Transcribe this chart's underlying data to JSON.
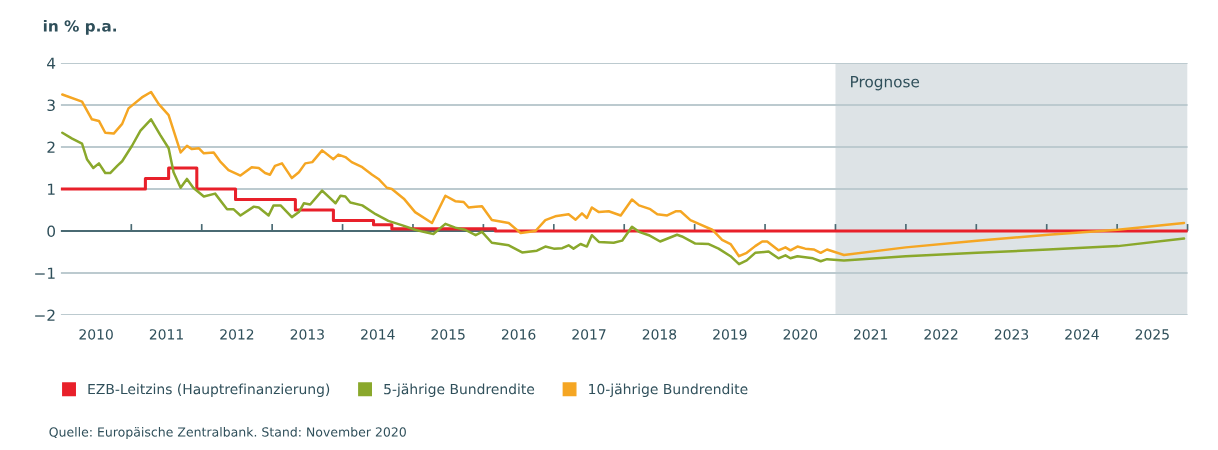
{
  "chart_data": {
    "type": "line",
    "ylabel": "in % p.a.",
    "xlim": [
      2010,
      2026
    ],
    "ylim": [
      -2,
      4
    ],
    "yticks": [
      {
        "value": -2,
        "label": "−2"
      },
      {
        "value": -1,
        "label": "−1"
      },
      0,
      1,
      2,
      3,
      4
    ],
    "xticks": [
      {
        "value": 2010.5,
        "label": "2010"
      },
      {
        "value": 2011.5,
        "label": "2011"
      },
      {
        "value": 2012.5,
        "label": "2012"
      },
      {
        "value": 2013.5,
        "label": "2013"
      },
      {
        "value": 2014.5,
        "label": "2014"
      },
      {
        "value": 2015.5,
        "label": "2015"
      },
      {
        "value": 2016.5,
        "label": "2016"
      },
      {
        "value": 2017.5,
        "label": "2017"
      },
      {
        "value": 2018.5,
        "label": "2018"
      },
      {
        "value": 2019.5,
        "label": "2019"
      },
      {
        "value": 2020.5,
        "label": "2020"
      },
      {
        "value": 2021.5,
        "label": "2021"
      },
      {
        "value": 2022.5,
        "label": "2022"
      },
      {
        "value": 2023.5,
        "label": "2023"
      },
      {
        "value": 2024.5,
        "label": "2024"
      },
      {
        "value": 2025.5,
        "label": "2025"
      },
      {
        "value": 2011,
        "label": null
      },
      {
        "value": 2012,
        "label": null
      },
      {
        "value": 2013,
        "label": null
      },
      {
        "value": 2014,
        "label": null
      },
      {
        "value": 2015,
        "label": null
      },
      {
        "value": 2016,
        "label": null
      },
      {
        "value": 2017,
        "label": null
      },
      {
        "value": 2018,
        "label": null
      },
      {
        "value": 2019,
        "label": null
      },
      {
        "value": 2020,
        "label": null
      },
      {
        "value": 2021,
        "label": null
      },
      {
        "value": 2022,
        "label": null
      },
      {
        "value": 2023,
        "label": null
      },
      {
        "value": 2024,
        "label": null
      },
      {
        "value": 2025,
        "label": null
      },
      {
        "value": 2026,
        "label": null
      }
    ],
    "grid": "y",
    "legend": "bottom",
    "ref_lines": [
      {
        "axis": "y",
        "value": 0,
        "color": "#4a6a73"
      }
    ],
    "bands": [
      {
        "axis": "x",
        "from": 2021.0,
        "to": 2026,
        "label": "Prognose",
        "color": "#dde3e6"
      }
    ],
    "annotations": [
      "Quelle: Europäische Zentralbank. Stand: November 2020"
    ],
    "series": [
      {
        "name": "EZB-Leitzins (Hauptrefinanzierung)",
        "type": "step",
        "color": "#e8202a",
        "x": [
          2010.0,
          2011.2,
          2011.53,
          2011.93,
          2012.48,
          2013.33,
          2013.87,
          2014.44,
          2014.7,
          2016.17,
          2026.0
        ],
        "values": [
          1.0,
          1.25,
          1.5,
          1.0,
          0.75,
          0.5,
          0.25,
          0.15,
          0.05,
          0.0,
          0.0
        ]
      },
      {
        "name": "5-jährige Bundrendite",
        "color": "#8aa82c",
        "x": [
          2010.02,
          2010.16,
          2010.3,
          2010.37,
          2010.46,
          2010.54,
          2010.63,
          2010.7,
          2010.8,
          2010.87,
          2011.01,
          2011.13,
          2011.28,
          2011.41,
          2011.53,
          2011.6,
          2011.7,
          2011.79,
          2011.88,
          2012.03,
          2012.19,
          2012.36,
          2012.45,
          2012.55,
          2012.74,
          2012.81,
          2012.95,
          2013.02,
          2013.12,
          2013.28,
          2013.38,
          2013.45,
          2013.54,
          2013.71,
          2013.9,
          2013.97,
          2014.04,
          2014.11,
          2014.28,
          2014.47,
          2014.65,
          2014.84,
          2015.03,
          2015.15,
          2015.29,
          2015.46,
          2015.6,
          2015.74,
          2015.89,
          2015.98,
          2016.12,
          2016.36,
          2016.55,
          2016.76,
          2016.88,
          2017.0,
          2017.12,
          2017.21,
          2017.28,
          2017.38,
          2017.47,
          2017.54,
          2017.64,
          2017.85,
          2017.97,
          2018.11,
          2018.21,
          2018.35,
          2018.51,
          2018.75,
          2018.82,
          2019.01,
          2019.2,
          2019.34,
          2019.51,
          2019.63,
          2019.74,
          2019.86,
          2020.05,
          2020.19,
          2020.29,
          2020.36,
          2020.46,
          2020.68,
          2020.79,
          2020.88,
          2021.12,
          2022.0,
          2023.01,
          2024.02,
          2025.01,
          2025.95
        ],
        "values": [
          2.34,
          2.2,
          2.08,
          1.71,
          1.5,
          1.61,
          1.38,
          1.38,
          1.55,
          1.66,
          2.03,
          2.39,
          2.66,
          2.29,
          1.97,
          1.4,
          1.03,
          1.24,
          1.03,
          0.82,
          0.89,
          0.52,
          0.52,
          0.37,
          0.58,
          0.56,
          0.37,
          0.61,
          0.61,
          0.33,
          0.45,
          0.66,
          0.63,
          0.96,
          0.66,
          0.84,
          0.82,
          0.68,
          0.61,
          0.4,
          0.24,
          0.14,
          0.03,
          -0.02,
          -0.07,
          0.17,
          0.08,
          0.03,
          -0.1,
          -0.02,
          -0.28,
          -0.34,
          -0.51,
          -0.47,
          -0.37,
          -0.42,
          -0.41,
          -0.34,
          -0.42,
          -0.31,
          -0.37,
          -0.1,
          -0.26,
          -0.28,
          -0.23,
          0.1,
          -0.02,
          -0.1,
          -0.25,
          -0.09,
          -0.13,
          -0.3,
          -0.31,
          -0.42,
          -0.6,
          -0.79,
          -0.7,
          -0.52,
          -0.49,
          -0.65,
          -0.58,
          -0.65,
          -0.6,
          -0.65,
          -0.72,
          -0.67,
          -0.7,
          -0.6,
          -0.52,
          -0.44,
          -0.36,
          -0.18
        ]
      },
      {
        "name": "10-jährige Bundrendite",
        "color": "#f5a623",
        "x": [
          2010.02,
          2010.3,
          2010.44,
          2010.54,
          2010.63,
          2010.75,
          2010.87,
          2010.96,
          2011.15,
          2011.28,
          2011.39,
          2011.53,
          2011.7,
          2011.79,
          2011.86,
          2011.96,
          2012.03,
          2012.17,
          2012.26,
          2012.38,
          2012.55,
          2012.71,
          2012.81,
          2012.9,
          2012.97,
          2013.04,
          2013.14,
          2013.28,
          2013.38,
          2013.47,
          2013.57,
          2013.71,
          2013.87,
          2013.94,
          2014.04,
          2014.13,
          2014.28,
          2014.42,
          2014.51,
          2014.63,
          2014.7,
          2014.87,
          2015.03,
          2015.27,
          2015.46,
          2015.6,
          2015.72,
          2015.79,
          2015.89,
          2015.98,
          2016.12,
          2016.36,
          2016.53,
          2016.74,
          2016.88,
          2017.02,
          2017.21,
          2017.31,
          2017.4,
          2017.47,
          2017.54,
          2017.64,
          2017.78,
          2017.95,
          2018.11,
          2018.21,
          2018.37,
          2018.47,
          2018.61,
          2018.73,
          2018.8,
          2018.94,
          2019.06,
          2019.25,
          2019.39,
          2019.51,
          2019.63,
          2019.74,
          2019.86,
          2019.96,
          2020.03,
          2020.19,
          2020.29,
          2020.36,
          2020.46,
          2020.57,
          2020.69,
          2020.79,
          2020.88,
          2021.12,
          2022.0,
          2023.01,
          2024.02,
          2025.01,
          2025.95
        ],
        "values": [
          3.25,
          3.08,
          2.66,
          2.62,
          2.34,
          2.32,
          2.55,
          2.92,
          3.18,
          3.31,
          3.02,
          2.76,
          1.87,
          2.03,
          1.95,
          1.97,
          1.85,
          1.87,
          1.66,
          1.45,
          1.32,
          1.52,
          1.5,
          1.38,
          1.34,
          1.55,
          1.61,
          1.26,
          1.4,
          1.61,
          1.64,
          1.92,
          1.71,
          1.82,
          1.76,
          1.64,
          1.52,
          1.34,
          1.24,
          1.03,
          1.0,
          0.77,
          0.45,
          0.19,
          0.84,
          0.71,
          0.69,
          0.56,
          0.58,
          0.59,
          0.26,
          0.19,
          -0.05,
          0.0,
          0.26,
          0.35,
          0.4,
          0.27,
          0.42,
          0.31,
          0.56,
          0.45,
          0.47,
          0.37,
          0.75,
          0.61,
          0.52,
          0.4,
          0.37,
          0.47,
          0.47,
          0.26,
          0.17,
          0.03,
          -0.21,
          -0.31,
          -0.6,
          -0.52,
          -0.36,
          -0.25,
          -0.25,
          -0.46,
          -0.39,
          -0.46,
          -0.37,
          -0.42,
          -0.44,
          -0.52,
          -0.44,
          -0.57,
          -0.39,
          -0.23,
          -0.09,
          0.03,
          0.19
        ]
      }
    ]
  }
}
